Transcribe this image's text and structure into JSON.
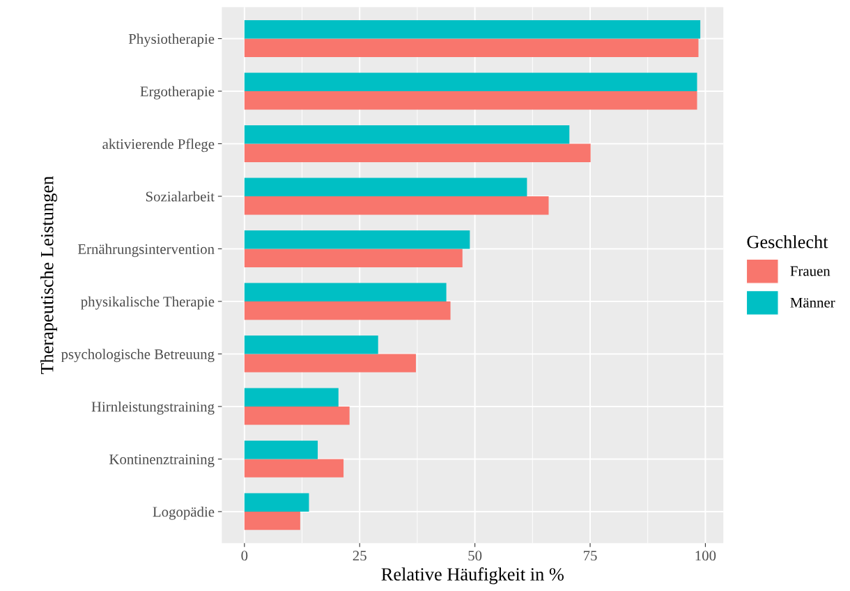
{
  "chart_data": {
    "type": "bar",
    "orientation": "horizontal",
    "ylabel": "Therapeutische Leistungen",
    "xlabel": "Relative Häufigkeit in %",
    "legend_title": "Geschlecht",
    "categories": [
      "Physiotherapie",
      "Ergotherapie",
      "aktivierende Pflege",
      "Sozialarbeit",
      "Ernährungsintervention",
      "physikalische Therapie",
      "psychologische Betreuung",
      "Hirnleistungstraining",
      "Kontinenztraining",
      "Logopädie"
    ],
    "series": [
      {
        "name": "Frauen",
        "color": "#f8766d",
        "values": [
          98.5,
          98.2,
          75.1,
          66.0,
          47.3,
          44.7,
          37.2,
          22.8,
          21.5,
          12.1
        ]
      },
      {
        "name": "Männer",
        "color": "#00bfc4",
        "values": [
          98.9,
          98.2,
          70.5,
          61.3,
          48.9,
          43.8,
          29.0,
          20.4,
          15.9,
          14.0
        ]
      }
    ],
    "xlim": [
      -4.9,
      103.9
    ],
    "xticks": [
      0,
      25,
      50,
      75,
      100
    ],
    "grid": true,
    "legend": "right"
  }
}
